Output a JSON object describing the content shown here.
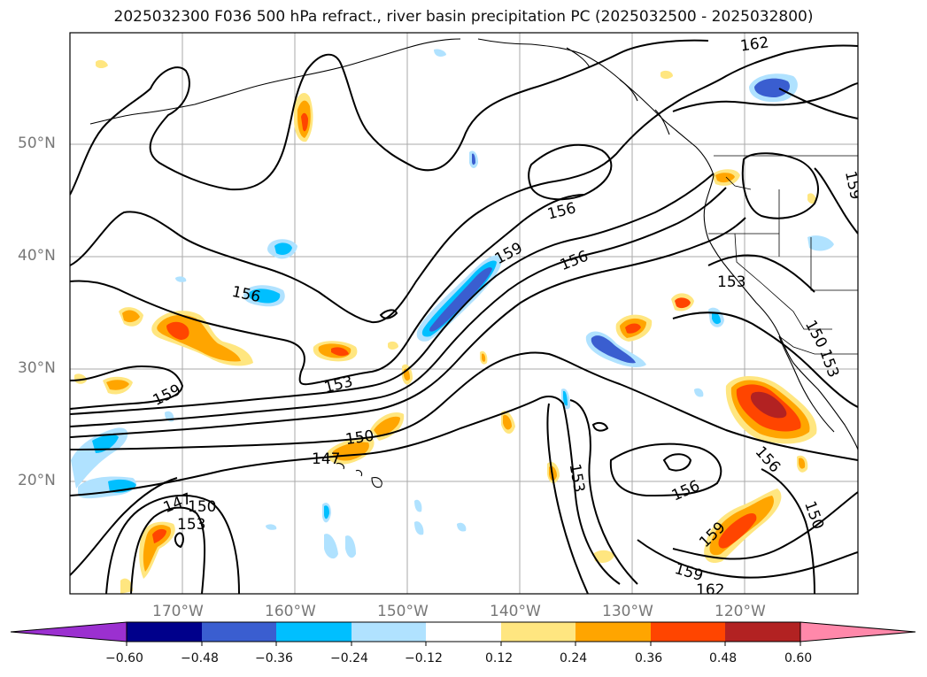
{
  "title": "2025032300 F036 500 hPa refract., river basin precipitation PC (2025032500 - 2025032800)",
  "lat_labels": [
    "50°N",
    "40°N",
    "30°N",
    "20°N"
  ],
  "lon_labels": [
    "170°W",
    "160°W",
    "150°W",
    "140°W",
    "130°W",
    "120°W"
  ],
  "contour_labels": [
    "162",
    "156",
    "159",
    "156",
    "156",
    "153",
    "159",
    "153",
    "150",
    "147",
    "147",
    "150",
    "153",
    "153",
    "156",
    "156",
    "159",
    "159",
    "162",
    "150",
    "159",
    "150",
    "153"
  ],
  "colorbar": {
    "ticks": [
      "−0.60",
      "−0.48",
      "−0.36",
      "−0.24",
      "−0.12",
      "0.12",
      "0.24",
      "0.36",
      "0.48",
      "0.60"
    ],
    "colors": [
      "#9b30d0",
      "#00008b",
      "#3a5ed0",
      "#00bfff",
      "#b0e2ff",
      "#ffffff",
      "#ffe680",
      "#ffa500",
      "#ff4500",
      "#b22222",
      "#ff88aa"
    ]
  },
  "legend_colors": {
    "land_outline": "#000000",
    "grid": "#aaaaaa",
    "contour": "#000000"
  }
}
